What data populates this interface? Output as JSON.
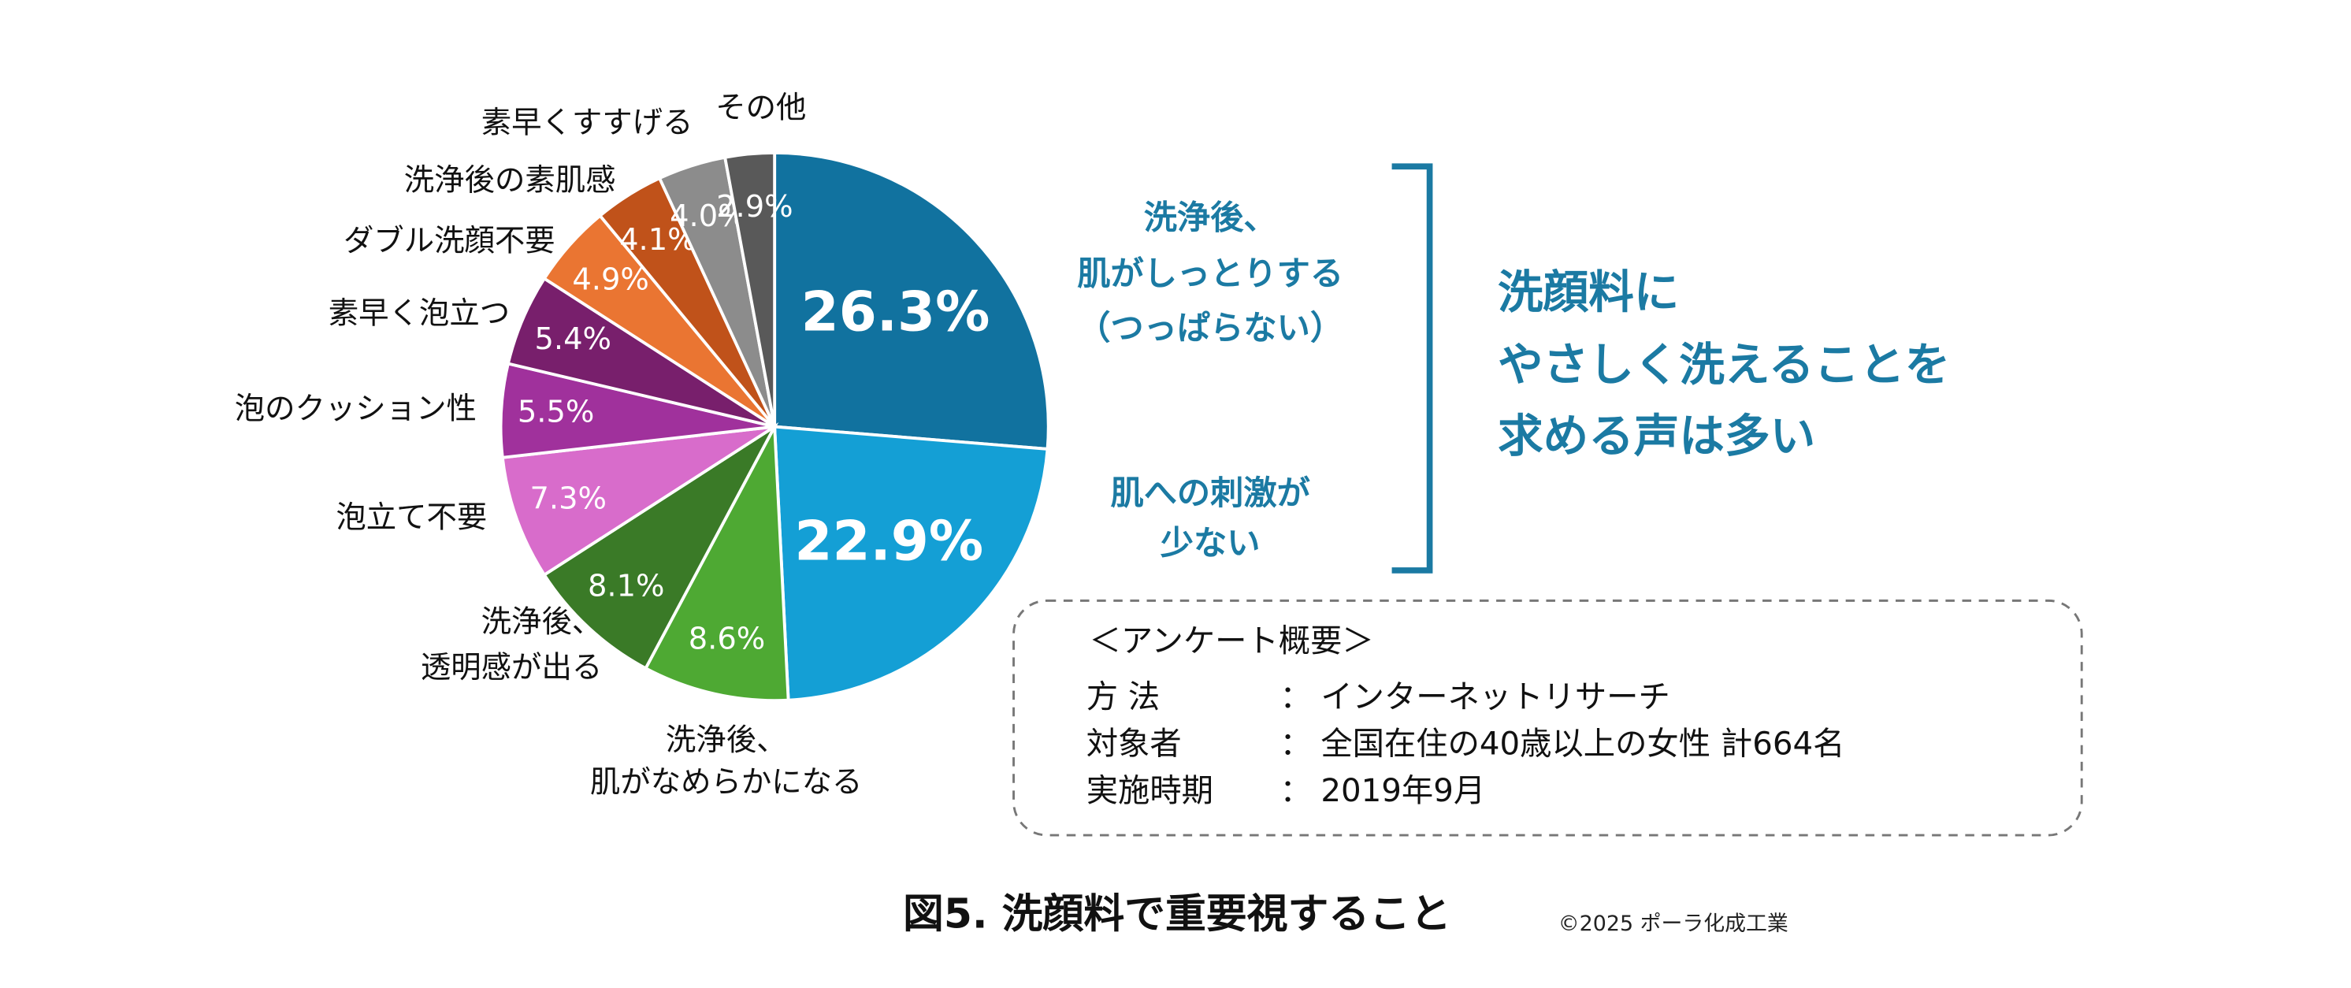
{
  "chart_data": {
    "type": "pie",
    "title": "図5. 洗顔料で重要視すること",
    "copyright": "©2025 ポーラ化成工業",
    "categories": [
      "洗浄後、\n肌がしっとりする\n（つっぱらない）",
      "肌への刺激が\n少ない",
      "洗浄後、\n肌がなめらかになる",
      "洗浄後、\n透明感が出る",
      "泡立て不要",
      "泡のクッション性",
      "素早く泡立つ",
      "ダブル洗顔不要",
      "洗浄後の素肌感",
      "素早くすすげる",
      "その他"
    ],
    "values": [
      26.3,
      22.9,
      8.6,
      8.1,
      7.3,
      5.5,
      5.4,
      4.9,
      4.1,
      4.0,
      2.9
    ],
    "value_labels": [
      "26.3%",
      "22.9%",
      "8.6%",
      "8.1%",
      "7.3%",
      "5.5%",
      "5.4%",
      "4.9%",
      "4.1%",
      "4.0%",
      "2.9%"
    ],
    "colors": [
      "#11729f",
      "#149fd5",
      "#4ea933",
      "#3a7a27",
      "#d86ccb",
      "#a0319c",
      "#781f6c",
      "#ea7532",
      "#c0521a",
      "#8c8c8c",
      "#595959"
    ],
    "callout": "洗顔料に\nやさしく洗えることを\n求める声は多い",
    "survey": {
      "title": "＜アンケート概要＞",
      "rows": [
        [
          "方 法",
          "：",
          "インターネットリサーチ"
        ],
        [
          "対象者",
          "：",
          "全国在住の40歳以上の女性 計664名"
        ],
        [
          "実施時期",
          "：",
          "2019年9月"
        ]
      ]
    }
  }
}
